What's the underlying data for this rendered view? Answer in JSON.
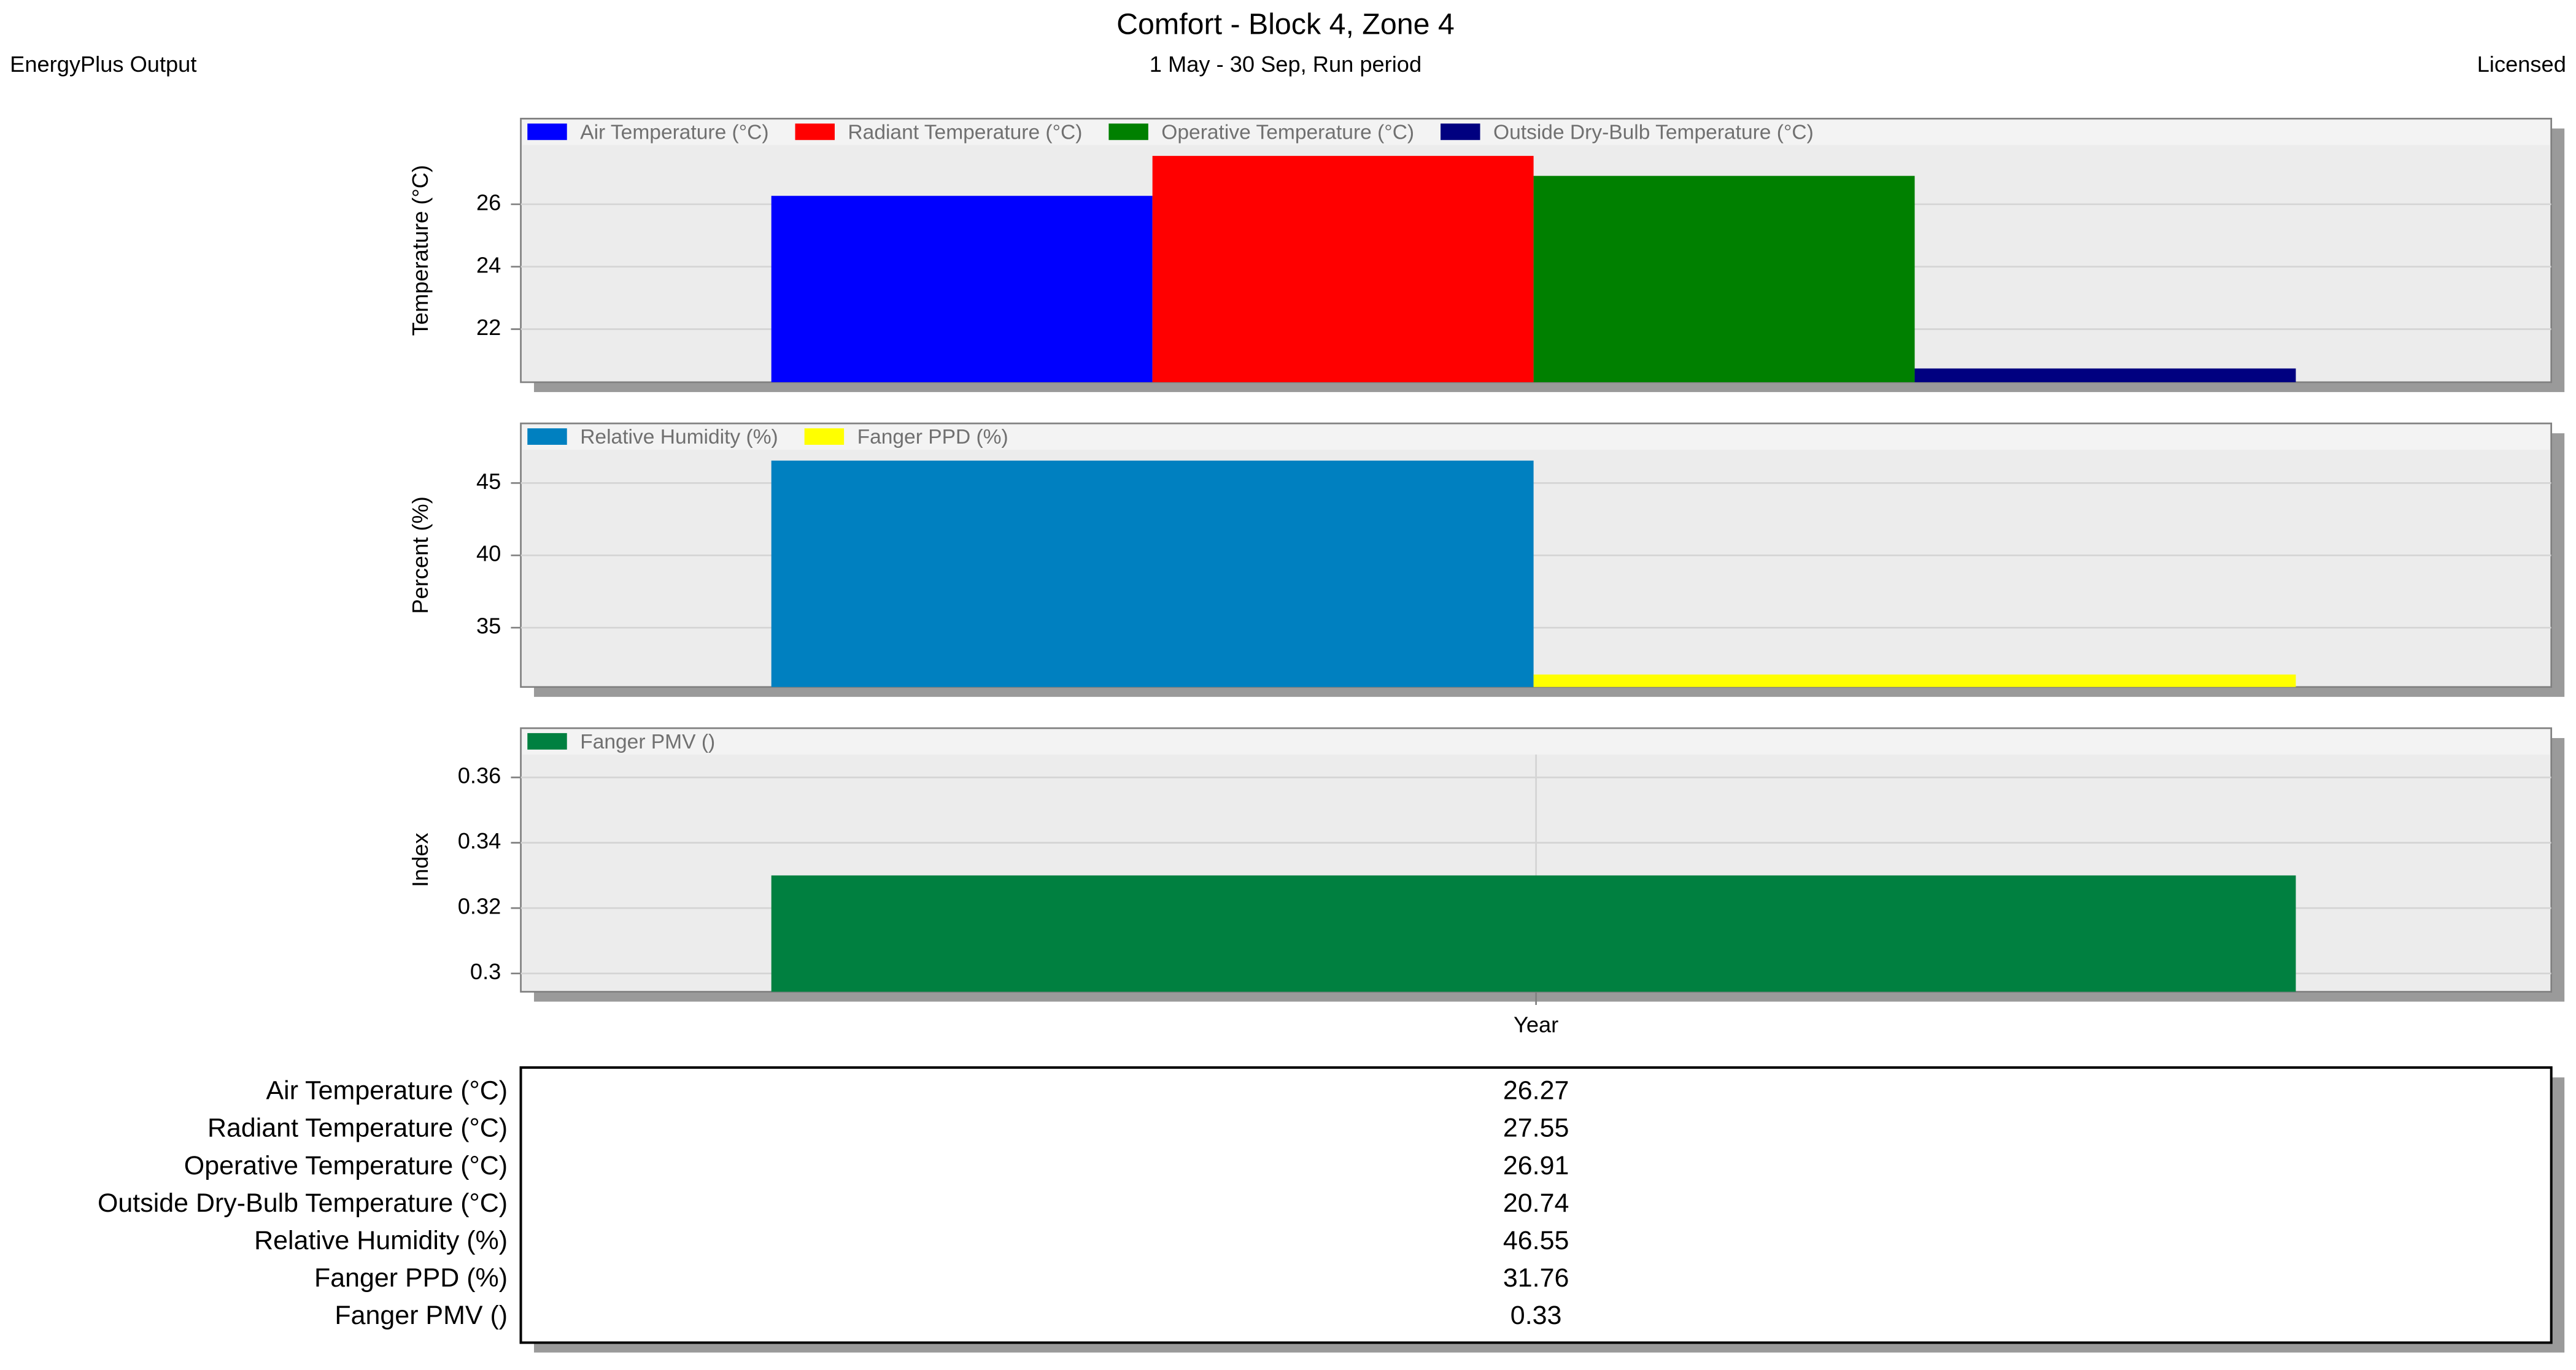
{
  "header": {
    "title": "Comfort - Block 4, Zone 4",
    "subtitle": "1 May - 30 Sep, Run period",
    "left": "EnergyPlus Output",
    "right": "Licensed"
  },
  "chart_data": [
    {
      "type": "bar",
      "y_label": "Temperature (°C)",
      "ylim": [
        20.3,
        27.9
      ],
      "yticks": [
        22,
        24,
        26
      ],
      "grid": true,
      "series": [
        {
          "name": "Air Temperature (°C)",
          "color": "#0000ff",
          "values": [
            26.27
          ]
        },
        {
          "name": "Radiant Temperature (°C)",
          "color": "#ff0000",
          "values": [
            27.55
          ]
        },
        {
          "name": "Operative Temperature (°C)",
          "color": "#008000",
          "values": [
            26.91
          ]
        },
        {
          "name": "Outside Dry-Bulb Temperature (°C)",
          "color": "#000080",
          "values": [
            20.74
          ]
        }
      ]
    },
    {
      "type": "bar",
      "y_label": "Percent (%)",
      "ylim": [
        30.9,
        47.3
      ],
      "yticks": [
        35,
        40,
        45
      ],
      "grid": true,
      "series": [
        {
          "name": "Relative Humidity (%)",
          "color": "#0080c0",
          "values": [
            46.55
          ]
        },
        {
          "name": "Fanger PPD (%)",
          "color": "#ffff00",
          "values": [
            31.76
          ]
        }
      ]
    },
    {
      "type": "bar",
      "y_label": "Index",
      "categories": [
        "Year"
      ],
      "ylim": [
        0.2944,
        0.367
      ],
      "yticks": [
        0.3,
        0.32,
        0.34,
        0.36
      ],
      "grid": true,
      "series": [
        {
          "name": "Fanger PMV ()",
          "color": "#008040",
          "values": [
            0.33
          ]
        }
      ]
    }
  ]
}
